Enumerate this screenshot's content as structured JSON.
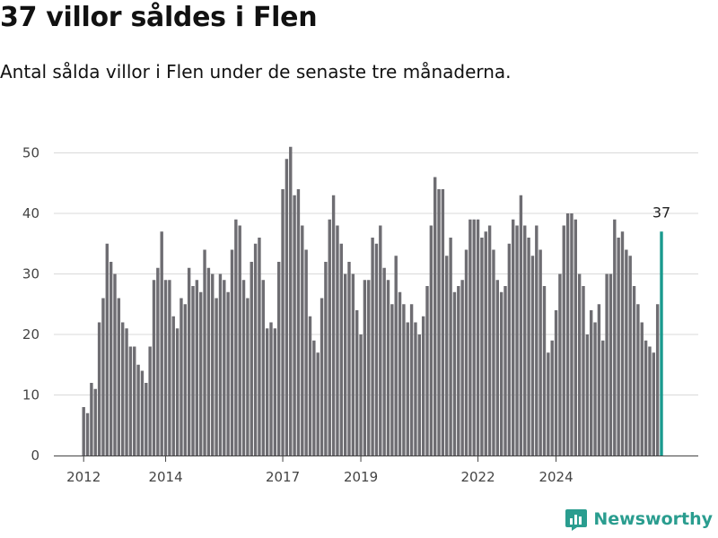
{
  "chart_data": {
    "type": "bar",
    "title": "37 villor såldes i Flen",
    "subtitle": "Antal sålda villor i Flen under de senaste tre månaderna.",
    "xlabel": "",
    "ylabel": "",
    "ylim": [
      0,
      53
    ],
    "yticks": [
      0,
      10,
      20,
      30,
      40,
      50
    ],
    "xticks": [
      {
        "label": "2012",
        "index": 0
      },
      {
        "label": "2014",
        "index": 21
      },
      {
        "label": "2017",
        "index": 51
      },
      {
        "label": "2019",
        "index": 71
      },
      {
        "label": "2022",
        "index": 101
      },
      {
        "label": "2024",
        "index": 121
      }
    ],
    "values": [
      8,
      7,
      12,
      11,
      22,
      26,
      35,
      32,
      30,
      26,
      22,
      21,
      18,
      18,
      15,
      14,
      12,
      18,
      29,
      31,
      37,
      29,
      29,
      23,
      21,
      26,
      25,
      31,
      28,
      29,
      27,
      34,
      31,
      30,
      26,
      30,
      29,
      27,
      34,
      39,
      38,
      29,
      26,
      32,
      35,
      36,
      29,
      21,
      22,
      21,
      32,
      44,
      49,
      51,
      43,
      44,
      38,
      34,
      23,
      19,
      17,
      26,
      32,
      39,
      43,
      38,
      35,
      30,
      32,
      30,
      24,
      20,
      29,
      29,
      36,
      35,
      38,
      31,
      29,
      25,
      33,
      27,
      25,
      22,
      25,
      22,
      20,
      23,
      28,
      38,
      46,
      44,
      44,
      33,
      36,
      27,
      28,
      29,
      34,
      39,
      39,
      39,
      36,
      37,
      38,
      34,
      29,
      27,
      28,
      35,
      39,
      38,
      43,
      38,
      36,
      33,
      38,
      34,
      28,
      17,
      19,
      24,
      30,
      38,
      40,
      40,
      39,
      30,
      28,
      20,
      24,
      22,
      25,
      19,
      30,
      30,
      39,
      36,
      37,
      34,
      33,
      28,
      25,
      22,
      19,
      18,
      17,
      25,
      37
    ],
    "highlight_index": 148,
    "annotation": "37"
  },
  "brand": {
    "name": "Newsworthy",
    "accent": "#2a9d8f",
    "bar_color": "#6e6d72",
    "highlight_color": "#1a9a8e"
  }
}
